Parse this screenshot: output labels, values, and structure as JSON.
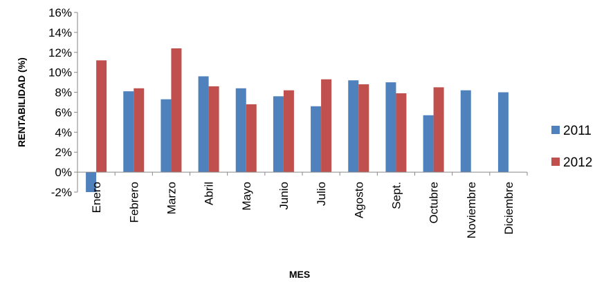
{
  "chart_data": {
    "type": "bar",
    "title": "",
    "xlabel": "MES",
    "ylabel": "RENTABILIDAD (%)",
    "ylim": [
      -2,
      16
    ],
    "ytick_step": 2,
    "ytick_suffix": "%",
    "grid": false,
    "legend_position": "right",
    "categories": [
      "Enero",
      "Febrero",
      "Marzo",
      "Abril",
      "Mayo",
      "Junio",
      "Julio",
      "Agosto",
      "Sept.",
      "Octubre",
      "Noviembre",
      "Diciembre"
    ],
    "series": [
      {
        "name": "2011",
        "color": "#4F81BD",
        "values": [
          -2.0,
          8.1,
          7.3,
          9.6,
          8.4,
          7.6,
          6.6,
          9.2,
          9.0,
          5.7,
          8.2,
          8.0
        ]
      },
      {
        "name": "2012",
        "color": "#C0504D",
        "values": [
          11.2,
          8.4,
          12.4,
          8.6,
          6.8,
          8.2,
          9.3,
          8.8,
          7.9,
          8.5,
          null,
          null
        ]
      }
    ]
  }
}
